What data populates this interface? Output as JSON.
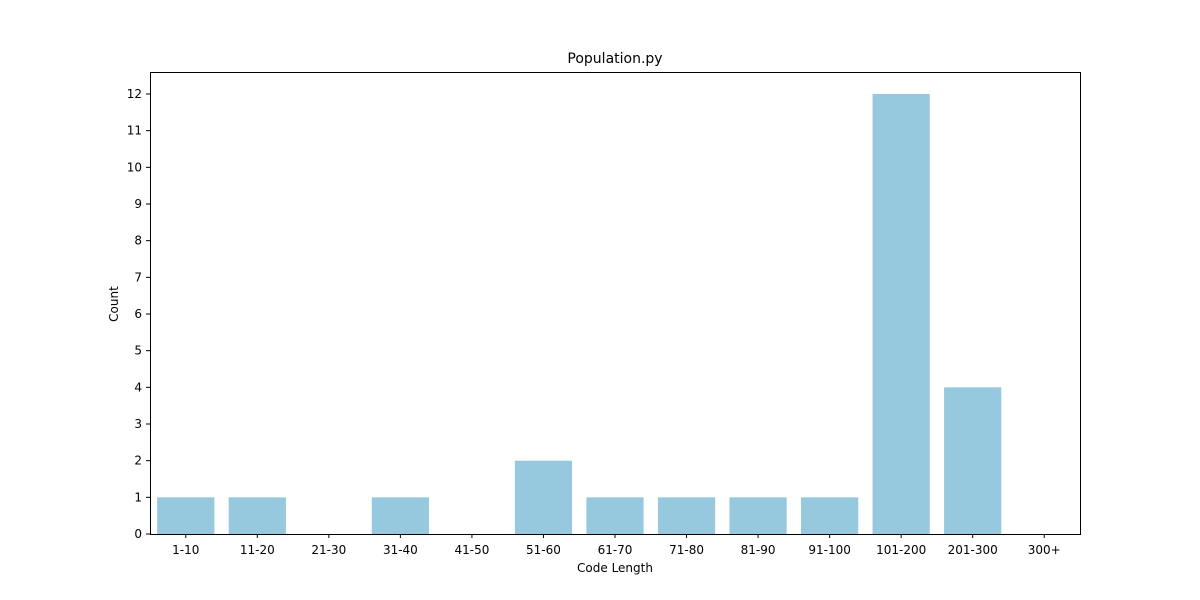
{
  "chart_data": {
    "type": "bar",
    "title": "Population.py",
    "xlabel": "Code Length",
    "ylabel": "Count",
    "categories": [
      "1-10",
      "11-20",
      "21-30",
      "31-40",
      "41-50",
      "51-60",
      "61-70",
      "71-80",
      "81-90",
      "91-100",
      "101-200",
      "201-300",
      "300+"
    ],
    "values": [
      1,
      1,
      0,
      1,
      0,
      2,
      1,
      1,
      1,
      1,
      12,
      4,
      0
    ],
    "ylim": [
      0,
      12.6
    ],
    "yticks": [
      "0",
      "1",
      "2",
      "3",
      "4",
      "5",
      "6",
      "7",
      "8",
      "9",
      "10",
      "11",
      "12"
    ],
    "bar_color": "#96c9de",
    "grid": false
  }
}
